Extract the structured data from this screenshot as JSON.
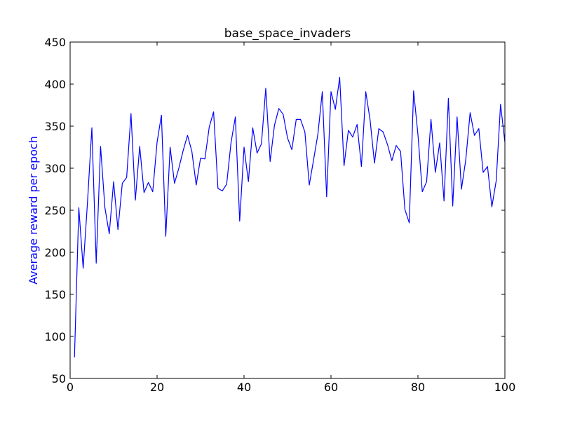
{
  "chart_data": {
    "type": "line",
    "title": "base_space_invaders",
    "xlabel": "",
    "ylabel": "Average reward per epoch",
    "xlim": [
      0,
      100
    ],
    "ylim": [
      50,
      450
    ],
    "xticks": [
      0,
      20,
      40,
      60,
      80,
      100
    ],
    "yticks": [
      50,
      100,
      150,
      200,
      250,
      300,
      350,
      400,
      450
    ],
    "xtick_labels": [
      "0",
      "20",
      "40",
      "60",
      "80",
      "100"
    ],
    "ytick_labels": [
      "50",
      "100",
      "150",
      "200",
      "250",
      "300",
      "350",
      "400",
      "450"
    ],
    "grid": false,
    "colors": {
      "series": "#0000ff",
      "ylabel": "#0000ff",
      "axes": "#000000"
    },
    "series": [
      {
        "x": [
          1,
          2,
          3,
          4,
          5,
          6,
          7,
          8,
          9,
          10,
          11,
          12,
          13,
          14,
          15,
          16,
          17,
          18,
          19,
          20,
          21,
          22,
          23,
          24,
          25,
          26,
          27,
          28,
          29,
          30,
          31,
          32,
          33,
          34,
          35,
          36,
          37,
          38,
          39,
          40,
          41,
          42,
          43,
          44,
          45,
          46,
          47,
          48,
          49,
          50,
          51,
          52,
          53,
          54,
          55,
          56,
          57,
          58,
          59,
          60,
          61,
          62,
          63,
          64,
          65,
          66,
          67,
          68,
          69,
          70,
          71,
          72,
          73,
          74,
          75,
          76,
          77,
          78,
          79,
          80,
          81,
          82,
          83,
          84,
          85,
          86,
          87,
          88,
          89,
          90,
          91,
          92,
          93,
          94,
          95,
          96,
          97,
          98,
          99,
          100
        ],
        "values": [
          75,
          253,
          181,
          260,
          348,
          187,
          326,
          253,
          222,
          284,
          227,
          282,
          289,
          365,
          262,
          326,
          271,
          283,
          272,
          331,
          363,
          219,
          325,
          282,
          300,
          321,
          339,
          320,
          280,
          312,
          311,
          349,
          367,
          276,
          273,
          281,
          330,
          361,
          237,
          325,
          284,
          348,
          318,
          329,
          395,
          308,
          351,
          371,
          364,
          336,
          322,
          358,
          358,
          343,
          280,
          310,
          341,
          391,
          266,
          391,
          370,
          408,
          303,
          345,
          337,
          352,
          302,
          391,
          357,
          306,
          347,
          343,
          328,
          309,
          327,
          320,
          251,
          235,
          392,
          340,
          272,
          284,
          358,
          295,
          330,
          261,
          383,
          255,
          361,
          275,
          310,
          366,
          339,
          347,
          295,
          302,
          254,
          285,
          376,
          331
        ]
      }
    ]
  }
}
